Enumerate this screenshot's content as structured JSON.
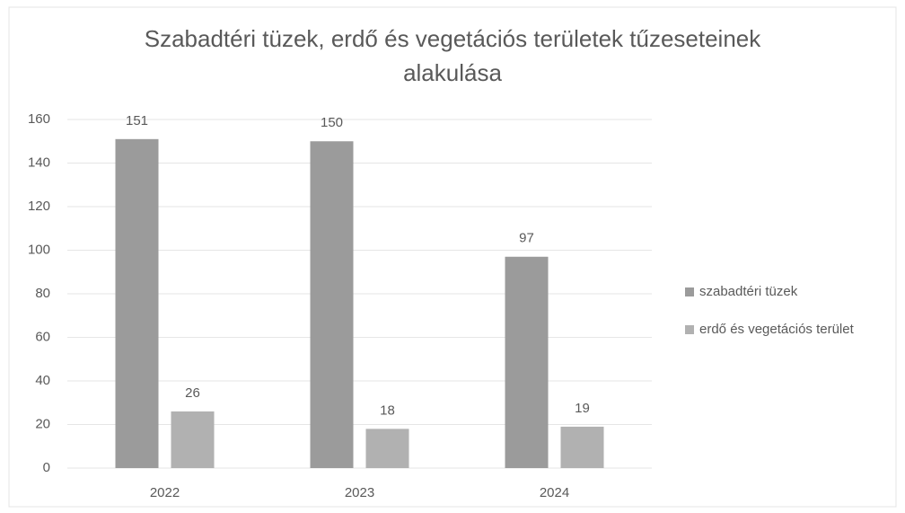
{
  "chart_data": {
    "type": "bar",
    "title": "Szabadtéri tüzek, erdő és vegetációs területek tűzeseteinek alakulása",
    "categories": [
      "2022",
      "2023",
      "2024"
    ],
    "series": [
      {
        "name": "szabadtéri tüzek",
        "color": "#9b9b9b",
        "values": [
          151,
          150,
          97
        ]
      },
      {
        "name": "erdő és vegetációs terület",
        "color": "#b1b1b1",
        "values": [
          26,
          18,
          19
        ]
      }
    ],
    "ylim": [
      0,
      160
    ],
    "yticks": [
      0,
      20,
      40,
      60,
      80,
      100,
      120,
      140,
      160
    ],
    "grid": true,
    "legend": "right"
  }
}
